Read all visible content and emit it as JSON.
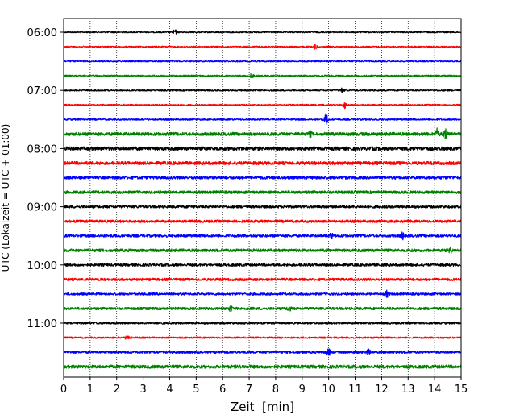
{
  "chart_data": {
    "type": "line",
    "xlabel": "Zeit  [min]",
    "ylabel": "UTC (Lokalzeit = UTC + 01:00)",
    "xlim": [
      0,
      15
    ],
    "x_ticks": [
      "0",
      "1",
      "2",
      "3",
      "4",
      "5",
      "6",
      "7",
      "8",
      "9",
      "10",
      "11",
      "12",
      "13",
      "14",
      "15"
    ],
    "y_ticks": [
      "06:00",
      "07:00",
      "08:00",
      "09:00",
      "10:00",
      "11:00"
    ],
    "grid": "vertical dotted",
    "line_colors": [
      "#000000",
      "#ff0000",
      "#0000ff",
      "#008000"
    ],
    "series": [
      {
        "start": "06:00",
        "color": "#000000",
        "amplitude": 0.8,
        "bursts": [
          {
            "t": 4.2,
            "amp": 3
          }
        ]
      },
      {
        "start": "06:15",
        "color": "#ff0000",
        "amplitude": 0.8,
        "bursts": [
          {
            "t": 9.5,
            "amp": 3
          }
        ]
      },
      {
        "start": "06:30",
        "color": "#0000ff",
        "amplitude": 0.8,
        "bursts": []
      },
      {
        "start": "06:45",
        "color": "#008000",
        "amplitude": 1.0,
        "bursts": [
          {
            "t": 7.1,
            "amp": 3
          }
        ]
      },
      {
        "start": "07:00",
        "color": "#000000",
        "amplitude": 0.9,
        "bursts": [
          {
            "t": 10.5,
            "amp": 3
          }
        ]
      },
      {
        "start": "07:15",
        "color": "#ff0000",
        "amplitude": 0.9,
        "bursts": [
          {
            "t": 10.6,
            "amp": 4
          }
        ]
      },
      {
        "start": "07:30",
        "color": "#0000ff",
        "amplitude": 1.0,
        "bursts": [
          {
            "t": 9.9,
            "amp": 7
          }
        ]
      },
      {
        "start": "07:45",
        "color": "#008000",
        "amplitude": 2.0,
        "bursts": [
          {
            "t": 14.1,
            "amp": 6
          },
          {
            "t": 14.4,
            "amp": 6
          },
          {
            "t": 9.3,
            "amp": 3
          }
        ]
      },
      {
        "start": "08:00",
        "color": "#000000",
        "amplitude": 2.2,
        "bursts": []
      },
      {
        "start": "08:15",
        "color": "#ff0000",
        "amplitude": 2.0,
        "bursts": []
      },
      {
        "start": "08:30",
        "color": "#0000ff",
        "amplitude": 1.8,
        "bursts": []
      },
      {
        "start": "08:45",
        "color": "#008000",
        "amplitude": 1.8,
        "bursts": []
      },
      {
        "start": "09:00",
        "color": "#000000",
        "amplitude": 1.6,
        "bursts": []
      },
      {
        "start": "09:15",
        "color": "#ff0000",
        "amplitude": 1.6,
        "bursts": []
      },
      {
        "start": "09:30",
        "color": "#0000ff",
        "amplitude": 1.6,
        "bursts": [
          {
            "t": 12.8,
            "amp": 4
          },
          {
            "t": 10.1,
            "amp": 3
          }
        ]
      },
      {
        "start": "09:45",
        "color": "#008000",
        "amplitude": 1.8,
        "bursts": [
          {
            "t": 14.6,
            "amp": 3
          }
        ]
      },
      {
        "start": "10:00",
        "color": "#000000",
        "amplitude": 1.6,
        "bursts": []
      },
      {
        "start": "10:15",
        "color": "#ff0000",
        "amplitude": 1.6,
        "bursts": []
      },
      {
        "start": "10:30",
        "color": "#0000ff",
        "amplitude": 1.4,
        "bursts": [
          {
            "t": 12.2,
            "amp": 4
          }
        ]
      },
      {
        "start": "10:45",
        "color": "#008000",
        "amplitude": 1.6,
        "bursts": [
          {
            "t": 6.3,
            "amp": 3
          },
          {
            "t": 8.5,
            "amp": 3
          }
        ]
      },
      {
        "start": "11:00",
        "color": "#000000",
        "amplitude": 1.2,
        "bursts": []
      },
      {
        "start": "11:15",
        "color": "#ff0000",
        "amplitude": 1.0,
        "bursts": [
          {
            "t": 2.4,
            "amp": 4
          }
        ]
      },
      {
        "start": "11:30",
        "color": "#0000ff",
        "amplitude": 1.4,
        "bursts": [
          {
            "t": 10.0,
            "amp": 4
          },
          {
            "t": 11.5,
            "amp": 3
          }
        ]
      },
      {
        "start": "11:45",
        "color": "#008000",
        "amplitude": 2.0,
        "bursts": []
      }
    ]
  }
}
